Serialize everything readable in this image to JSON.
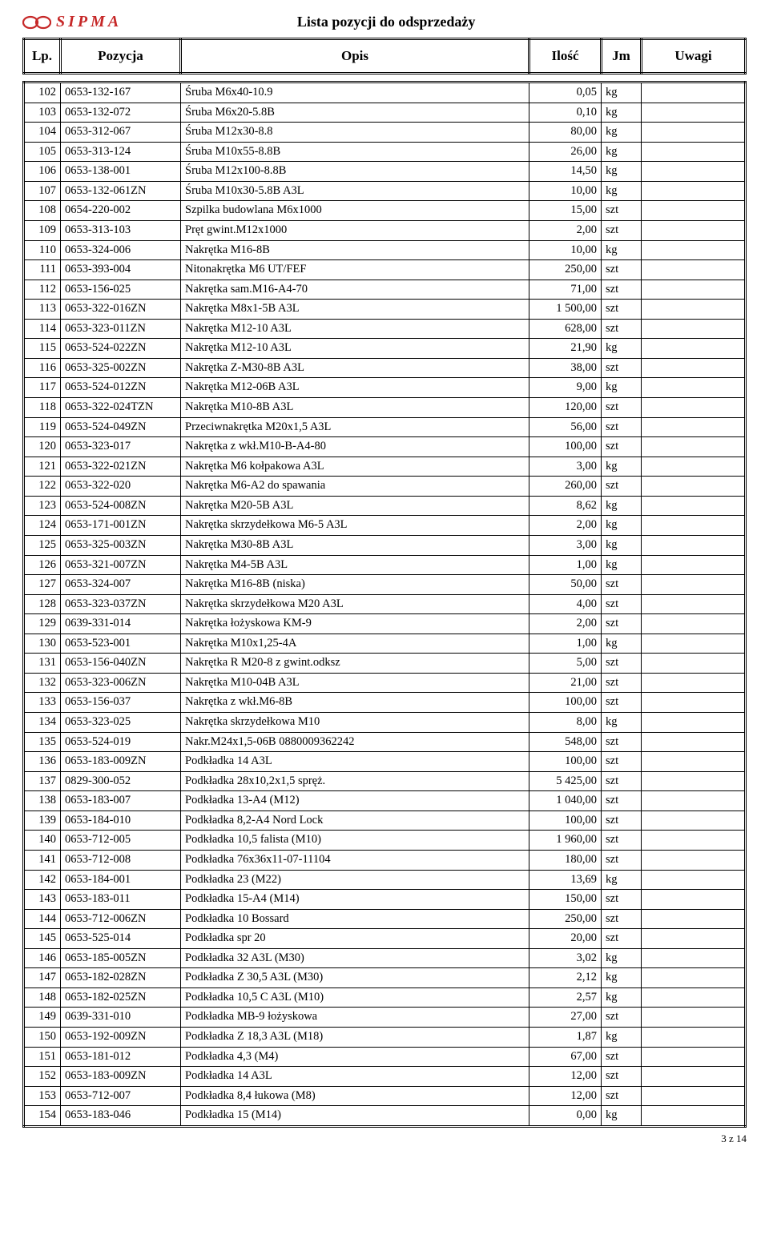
{
  "logo_text": "SIPMA",
  "title": "Lista pozycji do odsprzedaży",
  "columns": {
    "lp": "Lp.",
    "pozycja": "Pozycja",
    "opis": "Opis",
    "ilosc": "Ilość",
    "jm": "Jm",
    "uwagi": "Uwagi"
  },
  "footer": "3 z 14",
  "logo_color": "#c62828",
  "rows": [
    {
      "lp": 102,
      "poz": "0653-132-167",
      "opis": "Śruba M6x40-10.9",
      "ilosc": "0,05",
      "jm": "kg",
      "uwagi": ""
    },
    {
      "lp": 103,
      "poz": "0653-132-072",
      "opis": "Śruba M6x20-5.8B",
      "ilosc": "0,10",
      "jm": "kg",
      "uwagi": ""
    },
    {
      "lp": 104,
      "poz": "0653-312-067",
      "opis": "Śruba M12x30-8.8",
      "ilosc": "80,00",
      "jm": "kg",
      "uwagi": ""
    },
    {
      "lp": 105,
      "poz": "0653-313-124",
      "opis": "Śruba M10x55-8.8B",
      "ilosc": "26,00",
      "jm": "kg",
      "uwagi": ""
    },
    {
      "lp": 106,
      "poz": "0653-138-001",
      "opis": "Śruba M12x100-8.8B",
      "ilosc": "14,50",
      "jm": "kg",
      "uwagi": ""
    },
    {
      "lp": 107,
      "poz": "0653-132-061ZN",
      "opis": "Śruba M10x30-5.8B  A3L",
      "ilosc": "10,00",
      "jm": "kg",
      "uwagi": ""
    },
    {
      "lp": 108,
      "poz": "0654-220-002",
      "opis": "Szpilka budowlana M6x1000",
      "ilosc": "15,00",
      "jm": "szt",
      "uwagi": ""
    },
    {
      "lp": 109,
      "poz": "0653-313-103",
      "opis": "Pręt gwint.M12x1000",
      "ilosc": "2,00",
      "jm": "szt",
      "uwagi": ""
    },
    {
      "lp": 110,
      "poz": "0653-324-006",
      "opis": "Nakrętka M16-8B",
      "ilosc": "10,00",
      "jm": "kg",
      "uwagi": ""
    },
    {
      "lp": 111,
      "poz": "0653-393-004",
      "opis": "Nitonakrętka M6 UT/FEF",
      "ilosc": "250,00",
      "jm": "szt",
      "uwagi": ""
    },
    {
      "lp": 112,
      "poz": "0653-156-025",
      "opis": "Nakrętka sam.M16-A4-70",
      "ilosc": "71,00",
      "jm": "szt",
      "uwagi": ""
    },
    {
      "lp": 113,
      "poz": "0653-322-016ZN",
      "opis": "Nakrętka M8x1-5B  A3L",
      "ilosc": "1 500,00",
      "jm": "szt",
      "uwagi": ""
    },
    {
      "lp": 114,
      "poz": "0653-323-011ZN",
      "opis": "Nakrętka M12-10 A3L",
      "ilosc": "628,00",
      "jm": "szt",
      "uwagi": ""
    },
    {
      "lp": 115,
      "poz": "0653-524-022ZN",
      "opis": "Nakrętka M12-10 A3L",
      "ilosc": "21,90",
      "jm": "kg",
      "uwagi": ""
    },
    {
      "lp": 116,
      "poz": "0653-325-002ZN",
      "opis": "Nakrętka Z-M30-8B  A3L",
      "ilosc": "38,00",
      "jm": "szt",
      "uwagi": ""
    },
    {
      "lp": 117,
      "poz": "0653-524-012ZN",
      "opis": "Nakrętka M12-06B  A3L",
      "ilosc": "9,00",
      "jm": "kg",
      "uwagi": ""
    },
    {
      "lp": 118,
      "poz": "0653-322-024TZN",
      "opis": "Nakrętka M10-8B  A3L",
      "ilosc": "120,00",
      "jm": "szt",
      "uwagi": ""
    },
    {
      "lp": 119,
      "poz": "0653-524-049ZN",
      "opis": "Przeciwnakrętka M20x1,5  A3L",
      "ilosc": "56,00",
      "jm": "szt",
      "uwagi": ""
    },
    {
      "lp": 120,
      "poz": "0653-323-017",
      "opis": "Nakrętka z wkł.M10-B-A4-80",
      "ilosc": "100,00",
      "jm": "szt",
      "uwagi": ""
    },
    {
      "lp": 121,
      "poz": "0653-322-021ZN",
      "opis": "Nakrętka M6 kołpakowa  A3L",
      "ilosc": "3,00",
      "jm": "kg",
      "uwagi": ""
    },
    {
      "lp": 122,
      "poz": "0653-322-020",
      "opis": "Nakrętka M6-A2 do spawania",
      "ilosc": "260,00",
      "jm": "szt",
      "uwagi": ""
    },
    {
      "lp": 123,
      "poz": "0653-524-008ZN",
      "opis": "Nakrętka M20-5B  A3L",
      "ilosc": "8,62",
      "jm": "kg",
      "uwagi": ""
    },
    {
      "lp": 124,
      "poz": "0653-171-001ZN",
      "opis": "Nakrętka skrzydełkowa M6-5 A3L",
      "ilosc": "2,00",
      "jm": "kg",
      "uwagi": ""
    },
    {
      "lp": 125,
      "poz": "0653-325-003ZN",
      "opis": "Nakrętka M30-8B  A3L",
      "ilosc": "3,00",
      "jm": "kg",
      "uwagi": ""
    },
    {
      "lp": 126,
      "poz": "0653-321-007ZN",
      "opis": "Nakrętka M4-5B  A3L",
      "ilosc": "1,00",
      "jm": "kg",
      "uwagi": ""
    },
    {
      "lp": 127,
      "poz": "0653-324-007",
      "opis": "Nakrętka M16-8B (niska)",
      "ilosc": "50,00",
      "jm": "szt",
      "uwagi": ""
    },
    {
      "lp": 128,
      "poz": "0653-323-037ZN",
      "opis": "Nakrętka skrzydełkowa M20 A3L",
      "ilosc": "4,00",
      "jm": "szt",
      "uwagi": ""
    },
    {
      "lp": 129,
      "poz": "0639-331-014",
      "opis": "Nakrętka łożyskowa KM-9",
      "ilosc": "2,00",
      "jm": "szt",
      "uwagi": ""
    },
    {
      "lp": 130,
      "poz": "0653-523-001",
      "opis": "Nakrętka M10x1,25-4A",
      "ilosc": "1,00",
      "jm": "kg",
      "uwagi": ""
    },
    {
      "lp": 131,
      "poz": "0653-156-040ZN",
      "opis": "Nakrętka R M20-8 z gwint.odksz",
      "ilosc": "5,00",
      "jm": "szt",
      "uwagi": ""
    },
    {
      "lp": 132,
      "poz": "0653-323-006ZN",
      "opis": "Nakrętka M10-04B  A3L",
      "ilosc": "21,00",
      "jm": "szt",
      "uwagi": ""
    },
    {
      "lp": 133,
      "poz": "0653-156-037",
      "opis": "Nakrętka z wkł.M6-8B",
      "ilosc": "100,00",
      "jm": "szt",
      "uwagi": ""
    },
    {
      "lp": 134,
      "poz": "0653-323-025",
      "opis": "Nakrętka skrzydełkowa M10",
      "ilosc": "8,00",
      "jm": "kg",
      "uwagi": ""
    },
    {
      "lp": 135,
      "poz": "0653-524-019",
      "opis": "Nakr.M24x1,5-06B 0880009362242",
      "ilosc": "548,00",
      "jm": "szt",
      "uwagi": ""
    },
    {
      "lp": 136,
      "poz": "0653-183-009ZN",
      "opis": "Podkładka 14  A3L",
      "ilosc": "100,00",
      "jm": "szt",
      "uwagi": ""
    },
    {
      "lp": 137,
      "poz": "0829-300-052",
      "opis": "Podkładka 28x10,2x1,5 spręż.",
      "ilosc": "5 425,00",
      "jm": "szt",
      "uwagi": ""
    },
    {
      "lp": 138,
      "poz": "0653-183-007",
      "opis": "Podkładka 13-A4 (M12)",
      "ilosc": "1 040,00",
      "jm": "szt",
      "uwagi": ""
    },
    {
      "lp": 139,
      "poz": "0653-184-010",
      "opis": "Podkładka 8,2-A4 Nord Lock",
      "ilosc": "100,00",
      "jm": "szt",
      "uwagi": ""
    },
    {
      "lp": 140,
      "poz": "0653-712-005",
      "opis": "Podkładka 10,5 falista (M10)",
      "ilosc": "1 960,00",
      "jm": "szt",
      "uwagi": ""
    },
    {
      "lp": 141,
      "poz": "0653-712-008",
      "opis": "Podkładka 76x36x11-07-11104",
      "ilosc": "180,00",
      "jm": "szt",
      "uwagi": ""
    },
    {
      "lp": 142,
      "poz": "0653-184-001",
      "opis": "Podkładka 23 (M22)",
      "ilosc": "13,69",
      "jm": "kg",
      "uwagi": ""
    },
    {
      "lp": 143,
      "poz": "0653-183-011",
      "opis": "Podkładka 15-A4 (M14)",
      "ilosc": "150,00",
      "jm": "szt",
      "uwagi": ""
    },
    {
      "lp": 144,
      "poz": "0653-712-006ZN",
      "opis": "Podkładka 10 Bossard",
      "ilosc": "250,00",
      "jm": "szt",
      "uwagi": ""
    },
    {
      "lp": 145,
      "poz": "0653-525-014",
      "opis": "Podkładka spr 20",
      "ilosc": "20,00",
      "jm": "szt",
      "uwagi": ""
    },
    {
      "lp": 146,
      "poz": "0653-185-005ZN",
      "opis": "Podkładka 32  A3L (M30)",
      "ilosc": "3,02",
      "jm": "kg",
      "uwagi": ""
    },
    {
      "lp": 147,
      "poz": "0653-182-028ZN",
      "opis": "Podkładka Z 30,5  A3L (M30)",
      "ilosc": "2,12",
      "jm": "kg",
      "uwagi": ""
    },
    {
      "lp": 148,
      "poz": "0653-182-025ZN",
      "opis": "Podkładka 10,5 C  A3L (M10)",
      "ilosc": "2,57",
      "jm": "kg",
      "uwagi": ""
    },
    {
      "lp": 149,
      "poz": "0639-331-010",
      "opis": "Podkładka MB-9 łożyskowa",
      "ilosc": "27,00",
      "jm": "szt",
      "uwagi": ""
    },
    {
      "lp": 150,
      "poz": "0653-192-009ZN",
      "opis": "Podkładka Z 18,3  A3L (M18)",
      "ilosc": "1,87",
      "jm": "kg",
      "uwagi": ""
    },
    {
      "lp": 151,
      "poz": "0653-181-012",
      "opis": "Podkładka 4,3 (M4)",
      "ilosc": "67,00",
      "jm": "szt",
      "uwagi": ""
    },
    {
      "lp": 152,
      "poz": "0653-183-009ZN",
      "opis": "Podkładka 14  A3L",
      "ilosc": "12,00",
      "jm": "szt",
      "uwagi": ""
    },
    {
      "lp": 153,
      "poz": "0653-712-007",
      "opis": "Podkładka 8,4 łukowa (M8)",
      "ilosc": "12,00",
      "jm": "szt",
      "uwagi": ""
    },
    {
      "lp": 154,
      "poz": "0653-183-046",
      "opis": "Podkładka 15 (M14)",
      "ilosc": "0,00",
      "jm": "kg",
      "uwagi": ""
    }
  ]
}
